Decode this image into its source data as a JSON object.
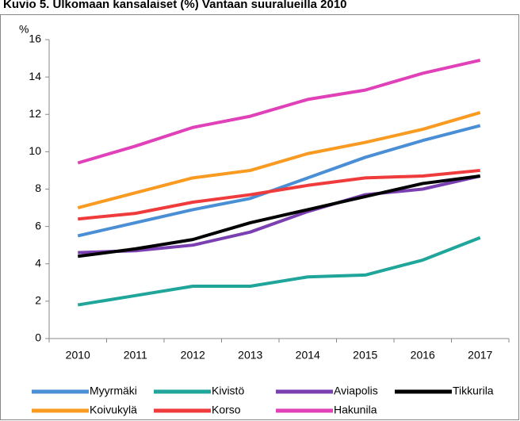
{
  "chart_data": {
    "type": "line",
    "title": "Kuvio 5. Ulkomaan kansalaiset (%) Vantaan suuralueilla 2010",
    "y_label": "%",
    "categories": [
      "2010",
      "2011",
      "2012",
      "2013",
      "2014",
      "2015",
      "2016",
      "2017"
    ],
    "series": [
      {
        "name": "Myyrmäki",
        "color": "#4a8fd6",
        "values": [
          5.5,
          6.2,
          6.9,
          7.5,
          8.6,
          9.7,
          10.6,
          11.4
        ]
      },
      {
        "name": "Kivistö",
        "color": "#1fa59a",
        "values": [
          1.8,
          2.3,
          2.8,
          2.8,
          3.3,
          3.4,
          4.2,
          5.4
        ]
      },
      {
        "name": "Aviapolis",
        "color": "#7a3fb0",
        "values": [
          4.6,
          4.7,
          5.0,
          5.7,
          6.8,
          7.7,
          8.0,
          8.7
        ]
      },
      {
        "name": "Tikkurila",
        "color": "#000000",
        "values": [
          4.4,
          4.8,
          5.3,
          6.2,
          6.9,
          7.6,
          8.3,
          8.7
        ]
      },
      {
        "name": "Koivukylä",
        "color": "#f99a21",
        "values": [
          7.0,
          7.8,
          8.6,
          9.0,
          9.9,
          10.5,
          11.2,
          12.1
        ]
      },
      {
        "name": "Korso",
        "color": "#ef3b3b",
        "values": [
          6.4,
          6.7,
          7.3,
          7.7,
          8.2,
          8.6,
          8.7,
          9.0
        ]
      },
      {
        "name": "Hakunila",
        "color": "#e040b8",
        "values": [
          9.4,
          10.3,
          11.3,
          11.9,
          12.8,
          13.3,
          14.2,
          14.9
        ]
      }
    ],
    "ylim": [
      0,
      16
    ],
    "yticks": [
      0,
      2,
      4,
      6,
      8,
      10,
      12,
      14,
      16
    ],
    "grid": false,
    "legend": "bottom"
  }
}
